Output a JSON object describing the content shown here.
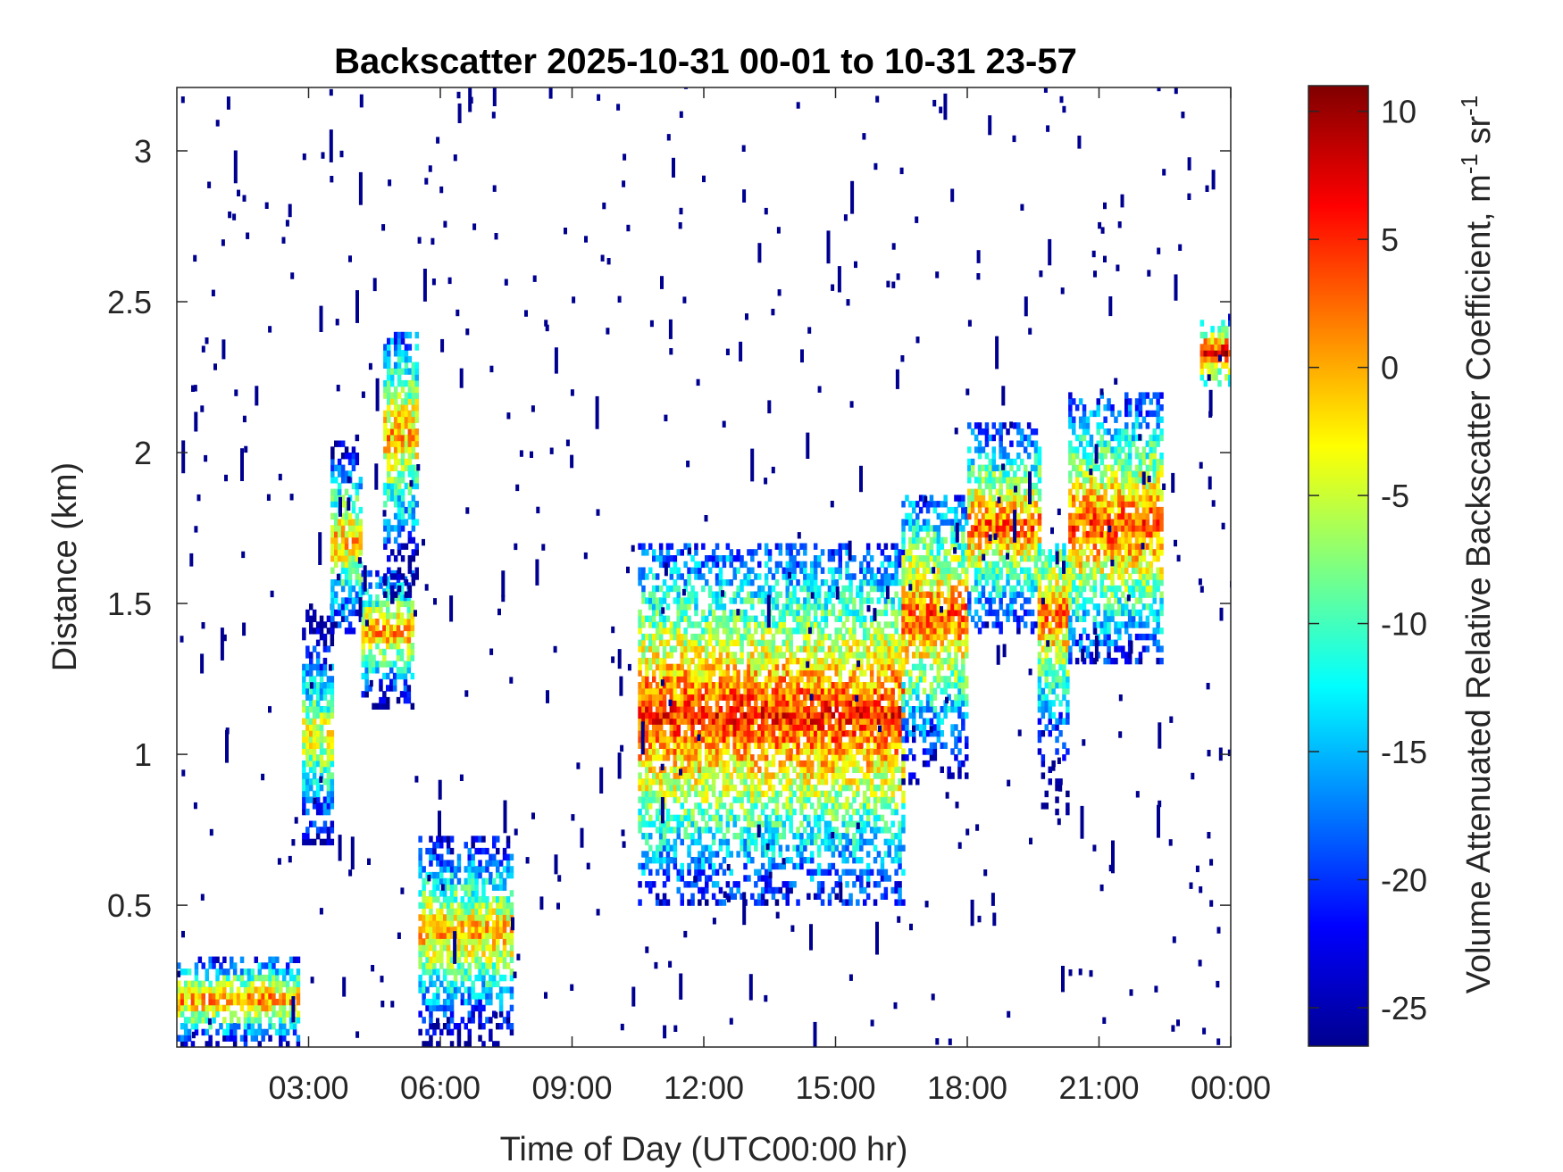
{
  "chart_data": {
    "type": "heatmap",
    "title": "Backscatter 2025-10-31 00-01 to 10-31 23-57",
    "xlabel": "Time of Day (UTC00:00 hr)",
    "ylabel": "Distance (km)",
    "colorbar_label": "Volume Attenuated Relative Backscatter Coefficient, m",
    "colorbar_unit_sup1": "-1",
    "colorbar_unit_mid": " sr",
    "colorbar_unit_sup2": "-1",
    "xlim_hours": [
      0,
      24
    ],
    "ylim_km": [
      0.03,
      3.21
    ],
    "clim": [
      -26.5,
      11
    ],
    "colormap": "jet",
    "grid": false,
    "x_ticks": [
      {
        "hour": 3,
        "label": "03:00"
      },
      {
        "hour": 6,
        "label": "06:00"
      },
      {
        "hour": 9,
        "label": "09:00"
      },
      {
        "hour": 12,
        "label": "12:00"
      },
      {
        "hour": 15,
        "label": "15:00"
      },
      {
        "hour": 18,
        "label": "18:00"
      },
      {
        "hour": 21,
        "label": "21:00"
      },
      {
        "hour": 24,
        "label": "00:00"
      }
    ],
    "y_ticks": [
      {
        "km": 0.5,
        "label": "0.5"
      },
      {
        "km": 1.0,
        "label": "1"
      },
      {
        "km": 1.5,
        "label": "1.5"
      },
      {
        "km": 2.0,
        "label": "2"
      },
      {
        "km": 2.5,
        "label": "2.5"
      },
      {
        "km": 3.0,
        "label": "3"
      }
    ],
    "colorbar_ticks": [
      {
        "value": 10,
        "label": "10"
      },
      {
        "value": 5,
        "label": "5"
      },
      {
        "value": 0,
        "label": "0"
      },
      {
        "value": -5,
        "label": "-5"
      },
      {
        "value": -10,
        "label": "-10"
      },
      {
        "value": -15,
        "label": "-15"
      },
      {
        "value": -20,
        "label": "-20"
      },
      {
        "value": -25,
        "label": "-25"
      }
    ],
    "features": [
      {
        "name": "surface layer",
        "t0": 0.0,
        "t1": 2.75,
        "h0": 0.03,
        "h1": 0.33,
        "core": 0.18,
        "peak": 2
      },
      {
        "name": "rising layer a",
        "t0": 2.85,
        "t1": 3.5,
        "h0": 0.7,
        "h1": 1.5,
        "core": 1.05,
        "peak": -3
      },
      {
        "name": "rising layer b",
        "t0": 3.5,
        "t1": 4.2,
        "h0": 1.4,
        "h1": 2.05,
        "core": 1.7,
        "peak": 0
      },
      {
        "name": "rising layer c",
        "t0": 4.2,
        "t1": 5.35,
        "h0": 1.15,
        "h1": 1.6,
        "core": 1.4,
        "peak": 1
      },
      {
        "name": "upper plume",
        "t0": 4.7,
        "t1": 5.5,
        "h0": 1.5,
        "h1": 2.4,
        "core": 2.05,
        "peak": 0
      },
      {
        "name": "morning aerosol",
        "t0": 5.5,
        "t1": 7.6,
        "h0": 0.03,
        "h1": 0.72,
        "core": 0.4,
        "peak": 0
      },
      {
        "name": "afternoon cloud",
        "t0": 10.5,
        "t1": 16.5,
        "h0": 0.5,
        "h1": 1.7,
        "core": 1.12,
        "peak": 5
      },
      {
        "name": "evening cloud a",
        "t0": 16.5,
        "t1": 18.0,
        "h0": 0.9,
        "h1": 1.85,
        "core": 1.45,
        "peak": 3
      },
      {
        "name": "evening cloud b",
        "t0": 18.0,
        "t1": 19.6,
        "h0": 1.4,
        "h1": 2.1,
        "core": 1.75,
        "peak": 3
      },
      {
        "name": "evening cloud c",
        "t0": 19.6,
        "t1": 20.3,
        "h0": 0.8,
        "h1": 1.7,
        "core": 1.45,
        "peak": 2
      },
      {
        "name": "night cloud",
        "t0": 20.3,
        "t1": 22.4,
        "h0": 1.3,
        "h1": 2.2,
        "core": 1.75,
        "peak": 4
      },
      {
        "name": "high patch",
        "t0": 23.3,
        "t1": 23.95,
        "h0": 2.22,
        "h1": 2.45,
        "core": 2.32,
        "peak": 8
      }
    ]
  }
}
